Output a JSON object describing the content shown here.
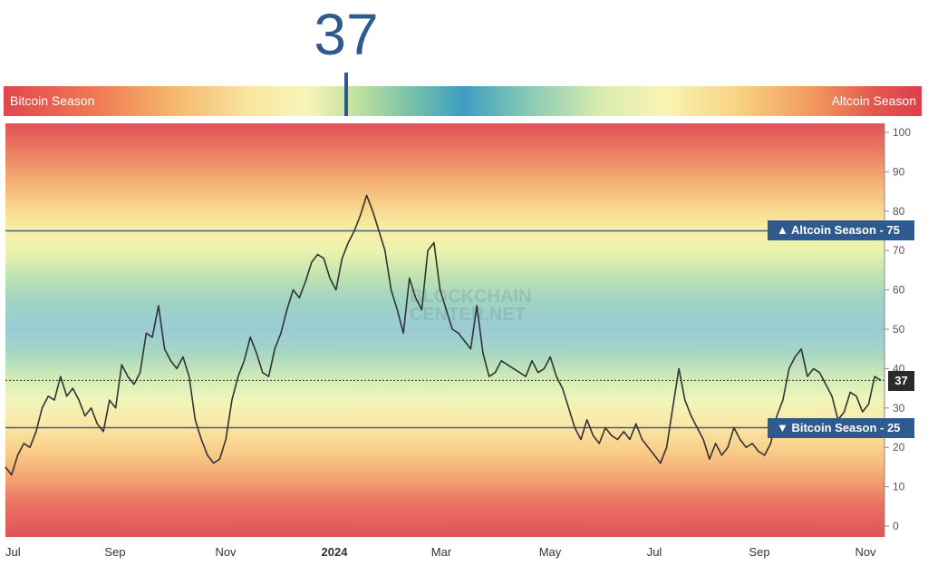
{
  "gauge": {
    "value": "37",
    "left_label": "Bitcoin Season",
    "right_label": "Altcoin Season",
    "accent_color": "#2f5a8f"
  },
  "badges": {
    "altcoin": "▲ Altcoin Season - 75",
    "bitcoin": "▼ Bitcoin Season - 25",
    "current": "37"
  },
  "watermark": [
    "BLOCKCHAIN",
    "CENTER.NET"
  ],
  "chart_data": {
    "type": "line",
    "ylim": [
      0,
      100
    ],
    "y_ticks": [
      "0",
      "10",
      "20",
      "30",
      "40",
      "50",
      "60",
      "70",
      "80",
      "90",
      "100"
    ],
    "x_ticks": [
      "Jul",
      "Sep",
      "Nov",
      "2024",
      "Mar",
      "May",
      "Jul",
      "Sep",
      "Nov"
    ],
    "x_tick_bold": [
      false,
      false,
      false,
      true,
      false,
      false,
      false,
      false,
      false
    ],
    "reference_lines": [
      75,
      25
    ],
    "current_value": 37,
    "grid": false,
    "series": [
      {
        "values": [
          15,
          13,
          18,
          21,
          20,
          24,
          30,
          33,
          32,
          38,
          33,
          35,
          32,
          28,
          30,
          26,
          24,
          32,
          30,
          41,
          38,
          36,
          39,
          49,
          48,
          56,
          45,
          42,
          40,
          43,
          38,
          27,
          22,
          18,
          16,
          17,
          22,
          32,
          38,
          42,
          48,
          44,
          39,
          38,
          45,
          49,
          55,
          60,
          58,
          62,
          67,
          69,
          68,
          63,
          60,
          68,
          72,
          75,
          79,
          84,
          80,
          75,
          70,
          60,
          55,
          49,
          63,
          58,
          55,
          70,
          72,
          60,
          55,
          50,
          49,
          47,
          45,
          56,
          44,
          38,
          39,
          42,
          41,
          40,
          39,
          38,
          42,
          39,
          40,
          43,
          38,
          35,
          30,
          25,
          22,
          27,
          23,
          21,
          25,
          23,
          22,
          24,
          22,
          26,
          22,
          20,
          18,
          16,
          20,
          30,
          40,
          32,
          28,
          25,
          22,
          17,
          21,
          18,
          20,
          25,
          22,
          20,
          21,
          19,
          18,
          21,
          28,
          32,
          40,
          43,
          45,
          38,
          40,
          39,
          36,
          33,
          27,
          29,
          34,
          33,
          29,
          31,
          38,
          37
        ]
      }
    ]
  }
}
